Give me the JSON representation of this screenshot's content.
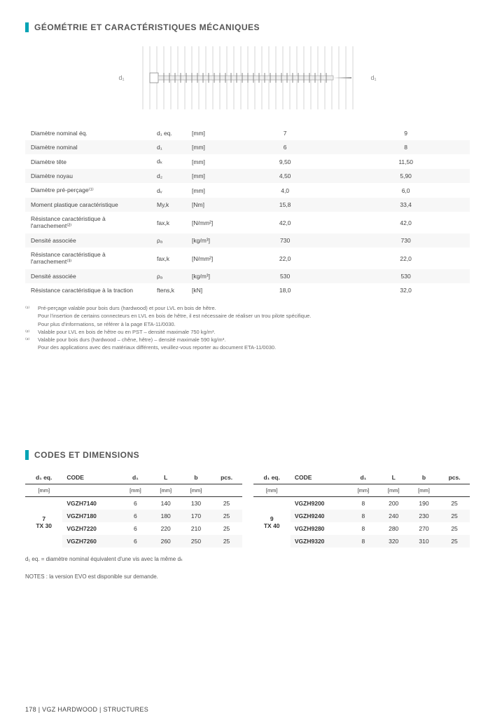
{
  "section1": {
    "title": "GÉOMÉTRIE ET CARACTÉRISTIQUES MÉCANIQUES",
    "diagram": {
      "left_label": "d₁",
      "right_label": "d₁"
    },
    "specs": {
      "rows": [
        {
          "label": "Diamètre nominal éq.",
          "sym": "d₁ eq.",
          "unit": "[mm]",
          "v7": "7",
          "v9": "9"
        },
        {
          "label": "Diamètre nominal",
          "sym": "d₁",
          "unit": "[mm]",
          "v7": "6",
          "v9": "8"
        },
        {
          "label": "Diamètre tête",
          "sym": "dₖ",
          "unit": "[mm]",
          "v7": "9,50",
          "v9": "11,50"
        },
        {
          "label": "Diamètre noyau",
          "sym": "d₂",
          "unit": "[mm]",
          "v7": "4,50",
          "v9": "5,90"
        },
        {
          "label": "Diamètre pré-perçage⁽¹⁾",
          "sym": "dᵥ",
          "unit": "[mm]",
          "v7": "4,0",
          "v9": "6,0"
        },
        {
          "label": "Moment plastique caractéristique",
          "sym": "My,k",
          "unit": "[Nm]",
          "v7": "15,8",
          "v9": "33,4"
        },
        {
          "label": "Résistance caractéristique à l'arrachement⁽²⁾",
          "sym": "fax,k",
          "unit": "[N/mm²]",
          "v7": "42,0",
          "v9": "42,0"
        },
        {
          "label": "Densité associée",
          "sym": "ρₐ",
          "unit": "[kg/m³]",
          "v7": "730",
          "v9": "730"
        },
        {
          "label": "Résistance caractéristique à l'arrachement⁽³⁾",
          "sym": "fax,k",
          "unit": "[N/mm²]",
          "v7": "22,0",
          "v9": "22,0"
        },
        {
          "label": "Densité associée",
          "sym": "ρₐ",
          "unit": "[kg/m³]",
          "v7": "530",
          "v9": "530"
        },
        {
          "label": "Résistance caractéristique à la traction",
          "sym": "ftens,k",
          "unit": "[kN]",
          "v7": "18,0",
          "v9": "32,0"
        }
      ]
    },
    "footnotes": [
      {
        "n": "⁽¹⁾",
        "t": "Pré-perçage valable pour bois durs (hardwood) et pour LVL en bois de hêtre."
      },
      {
        "n": "",
        "t": "Pour l'insertion de certains connecteurs en LVL en bois de hêtre, il est nécessaire de réaliser un trou pilote spécifique."
      },
      {
        "n": "",
        "t": "Pour plus d'informations, se référer à la page ETA-11/0030."
      },
      {
        "n": "⁽²⁾",
        "t": "Valable pour LVL en bois de hêtre ou en PST – densité maximale 750 kg/m³."
      },
      {
        "n": "⁽³⁾",
        "t": "Valable pour bois durs (hardwood – chêne, hêtre) – densité maximale 590 kg/m³."
      },
      {
        "n": "",
        "t": "Pour des applications avec des matériaux différents, veuillez-vous reporter au document ETA-11/0030."
      }
    ]
  },
  "section2": {
    "title": "CODES ET DIMENSIONS",
    "headers": {
      "d1eq": "d₁ eq.",
      "code": "CODE",
      "d1": "d₁",
      "L": "L",
      "b": "b",
      "pcs": "pcs."
    },
    "units": "[mm]",
    "left": {
      "group": "7",
      "tx": "TX 30",
      "rows": [
        {
          "code": "VGZH7140",
          "d1": "6",
          "L": "140",
          "b": "130",
          "pcs": "25"
        },
        {
          "code": "VGZH7180",
          "d1": "6",
          "L": "180",
          "b": "170",
          "pcs": "25"
        },
        {
          "code": "VGZH7220",
          "d1": "6",
          "L": "220",
          "b": "210",
          "pcs": "25"
        },
        {
          "code": "VGZH7260",
          "d1": "6",
          "L": "260",
          "b": "250",
          "pcs": "25"
        }
      ]
    },
    "right": {
      "group": "9",
      "tx": "TX 40",
      "rows": [
        {
          "code": "VGZH9200",
          "d1": "8",
          "L": "200",
          "b": "190",
          "pcs": "25"
        },
        {
          "code": "VGZH9240",
          "d1": "8",
          "L": "240",
          "b": "230",
          "pcs": "25"
        },
        {
          "code": "VGZH9280",
          "d1": "8",
          "L": "280",
          "b": "270",
          "pcs": "25"
        },
        {
          "code": "VGZH9320",
          "d1": "8",
          "L": "320",
          "b": "310",
          "pcs": "25"
        }
      ]
    },
    "def": "d₁ eq. =  diamètre nominal équivalent d'une vis avec la même dₖ",
    "notes": "NOTES : la version EVO est disponible sur demande."
  },
  "footer": "178  |  VGZ HARDWOOD  |  STRUCTURES"
}
